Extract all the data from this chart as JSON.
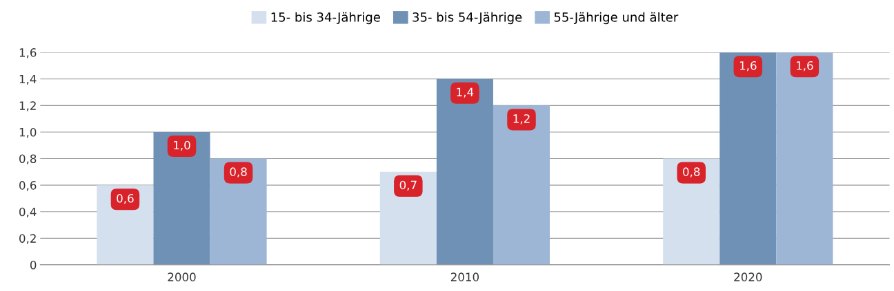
{
  "chart_data": {
    "type": "bar",
    "categories": [
      "2000",
      "2010",
      "2020"
    ],
    "series": [
      {
        "name": "15- bis 34-Jährige",
        "color": "#d5e0ee",
        "values": [
          0.6,
          0.7,
          0.8
        ]
      },
      {
        "name": "35- bis 54-Jährige",
        "color": "#6f91b5",
        "values": [
          1.0,
          1.4,
          1.6
        ]
      },
      {
        "name": "55-Jährige und älter",
        "color": "#9db6d6",
        "values": [
          0.8,
          1.2,
          1.6
        ]
      }
    ],
    "value_labels": [
      [
        "0,6",
        "0,7",
        "0,8"
      ],
      [
        "1,0",
        "1,4",
        "1,6"
      ],
      [
        "0,8",
        "1,2",
        "1,6"
      ]
    ],
    "ylim": [
      0,
      1.6
    ],
    "yticks": [
      0,
      {
        "value": 0.2,
        "label": "0,2"
      },
      {
        "value": 0.4,
        "label": "0,4"
      },
      {
        "value": 0.6,
        "label": "0,6"
      },
      {
        "value": 0.8,
        "label": "0,8"
      },
      {
        "value": 1.0,
        "label": "1,0"
      },
      {
        "value": 1.2,
        "label": "1,2"
      },
      {
        "value": 1.4,
        "label": "1,4"
      },
      {
        "value": 1.6,
        "label": "1,6"
      }
    ],
    "grid": "y",
    "legend": "top"
  }
}
